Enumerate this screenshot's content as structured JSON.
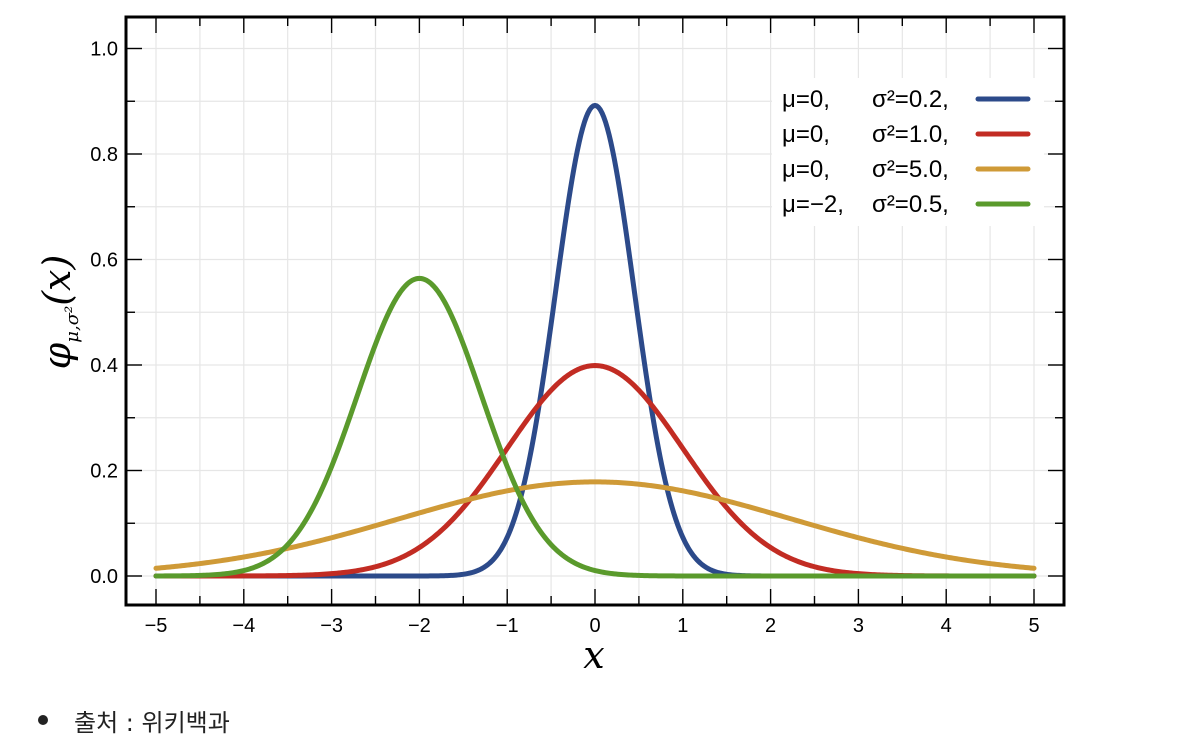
{
  "chart_data": {
    "type": "line",
    "xlabel": "x",
    "ylabel": {
      "main": "φ",
      "subscript": "μ,σ²",
      "arg": "(x)"
    },
    "xlim": [
      -5,
      5
    ],
    "ylim": [
      -0.05,
      1.05
    ],
    "xticks": [
      -5,
      -4,
      -3,
      -2,
      -1,
      0,
      1,
      2,
      3,
      4,
      5
    ],
    "xtick_labels": [
      "−5",
      "−4",
      "−3",
      "−2",
      "−1",
      "0",
      "1",
      "2",
      "3",
      "4",
      "5"
    ],
    "yticks": [
      0.0,
      0.2,
      0.4,
      0.6,
      0.8,
      1.0
    ],
    "ytick_labels": [
      "0.0",
      "0.2",
      "0.4",
      "0.6",
      "0.8",
      "1.0"
    ],
    "grid": true,
    "legend_position": "top-right",
    "series": [
      {
        "mu_label": "μ=0,",
        "sigma_label": "σ²=0.2,",
        "mu": 0,
        "variance": 0.2,
        "color": "#2c4a8a"
      },
      {
        "mu_label": "μ=0,",
        "sigma_label": "σ²=1.0,",
        "mu": 0,
        "variance": 1.0,
        "color": "#c22c23"
      },
      {
        "mu_label": "μ=0,",
        "sigma_label": "σ²=5.0,",
        "mu": 0,
        "variance": 5.0,
        "color": "#cf9a37"
      },
      {
        "mu_label": "μ=−2,",
        "sigma_label": "σ²=0.5,",
        "mu": -2,
        "variance": 0.5,
        "color": "#5a9a2c"
      }
    ]
  },
  "caption": {
    "text": "출처 : 위키백과"
  }
}
